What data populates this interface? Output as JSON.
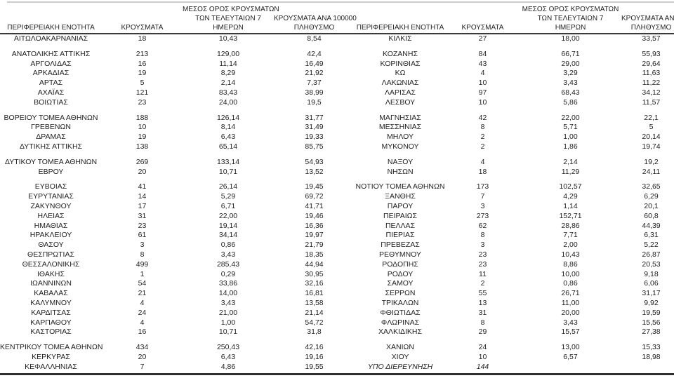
{
  "colors": {
    "background": "#ffffff",
    "text": "#1f1f1f",
    "top_rule": "#cbcbcb",
    "header_rule": "#3a3a3a",
    "bottom_rule": "#2e2e2e"
  },
  "header": {
    "region": "ΠΕΡΙΦΕΡΕΙΑΚΗ ΕΝΟΤΗΤΑ",
    "cases": "ΚΡΟΥΣΜΑΤΑ",
    "avg_line1": "ΜΕΣΟΣ ΟΡΟΣ ΚΡΟΥΣΜΑΤΩΝ",
    "avg_line2": "ΤΩΝ ΤΕΛΕΥΤΑΙΩΝ 7",
    "avg_line3": "ΗΜΕΡΩΝ",
    "per100k_line1": "ΚΡΟΥΣΜΑΤΑ ΑΝΑ 100000",
    "per100k_line2": "ΠΛΗΘΥΣΜΟ"
  },
  "rows": [
    {
      "left": [
        "ΑΙΤΩΛΟΑΚΑΡΝΑΝΙΑΣ",
        "18",
        "10,43",
        "8,54"
      ],
      "right": [
        "ΚΙΛΚΙΣ",
        "27",
        "18,00",
        "33,57"
      ]
    },
    {
      "spacer": true
    },
    {
      "left": [
        "ΑΝΑΤΟΛΙΚΗΣ ΑΤΤΙΚΗΣ",
        "213",
        "129,00",
        "42,4"
      ],
      "right": [
        "ΚΟΖΑΝΗΣ",
        "84",
        "66,71",
        "55,93"
      ]
    },
    {
      "left": [
        "ΑΡΓΟΛΙΔΑΣ",
        "16",
        "11,14",
        "16,49"
      ],
      "right": [
        "ΚΟΡΙΝΘΙΑΣ",
        "43",
        "29,00",
        "29,64"
      ]
    },
    {
      "left": [
        "ΑΡΚΑΔΙΑΣ",
        "19",
        "8,29",
        "21,92"
      ],
      "right": [
        "ΚΩ",
        "4",
        "3,29",
        "11,63"
      ]
    },
    {
      "left": [
        "ΑΡΤΑΣ",
        "5",
        "2,14",
        "7,37"
      ],
      "right": [
        "ΛΑΚΩΝΙΑΣ",
        "10",
        "3,43",
        "11,22"
      ]
    },
    {
      "left": [
        "ΑΧΑΪΑΣ",
        "121",
        "83,43",
        "38,99"
      ],
      "right": [
        "ΛΑΡΙΣΑΣ",
        "97",
        "68,43",
        "34,12"
      ]
    },
    {
      "left": [
        "ΒΟΙΩΤΙΑΣ",
        "23",
        "24,00",
        "19,5"
      ],
      "right": [
        "ΛΕΣΒΟΥ",
        "10",
        "5,86",
        "11,57"
      ]
    },
    {
      "spacer": true
    },
    {
      "left": [
        "ΒΟΡΕΙΟΥ ΤΟΜΕΑ ΑΘΗΝΩΝ",
        "188",
        "126,14",
        "31,77"
      ],
      "right": [
        "ΜΑΓΝΗΣΙΑΣ",
        "42",
        "22,00",
        "22,1"
      ]
    },
    {
      "left": [
        "ΓΡΕΒΕΝΩΝ",
        "10",
        "8,14",
        "31,49"
      ],
      "right": [
        "ΜΕΣΣΗΝΙΑΣ",
        "8",
        "5,71",
        "5"
      ]
    },
    {
      "left": [
        "ΔΡΑΜΑΣ",
        "19",
        "6,43",
        "19,33"
      ],
      "right": [
        "ΜΗΛΟΥ",
        "2",
        "1,00",
        "20,14"
      ]
    },
    {
      "left": [
        "ΔΥΤΙΚΗΣ ΑΤΤΙΚΗΣ",
        "138",
        "65,14",
        "85,75"
      ],
      "right": [
        "ΜΥΚΟΝΟΥ",
        "2",
        "1,86",
        "19,74"
      ]
    },
    {
      "spacer": true
    },
    {
      "left": [
        "ΔΥΤΙΚΟΥ ΤΟΜΕΑ ΑΘΗΝΩΝ",
        "269",
        "133,14",
        "54,93"
      ],
      "right": [
        "ΝΑΞΟΥ",
        "4",
        "2,14",
        "19,2"
      ]
    },
    {
      "left": [
        "ΕΒΡΟΥ",
        "20",
        "10,71",
        "13,52"
      ],
      "right": [
        "ΝΗΣΩΝ",
        "18",
        "11,29",
        "24,11"
      ]
    },
    {
      "spacer": true
    },
    {
      "left": [
        "ΕΥΒΟΙΑΣ",
        "41",
        "26,14",
        "19,45"
      ],
      "right": [
        "ΝΟΤΙΟΥ ΤΟΜΕΑ ΑΘΗΝΩΝ",
        "173",
        "102,57",
        "32,65"
      ]
    },
    {
      "left": [
        "ΕΥΡΥΤΑΝΙΑΣ",
        "14",
        "5,29",
        "69,72"
      ],
      "right": [
        "ΞΑΝΘΗΣ",
        "7",
        "4,29",
        "6,29"
      ]
    },
    {
      "left": [
        "ΖΑΚΥΝΘΟΥ",
        "17",
        "6,71",
        "41,71"
      ],
      "right": [
        "ΠΑΡΟΥ",
        "3",
        "1,14",
        "20,1"
      ]
    },
    {
      "left": [
        "ΗΛΕΙΑΣ",
        "31",
        "22,00",
        "19,46"
      ],
      "right": [
        "ΠΕΙΡΑΙΩΣ",
        "273",
        "152,71",
        "60,8"
      ]
    },
    {
      "left": [
        "ΗΜΑΘΙΑΣ",
        "23",
        "19,14",
        "16,36"
      ],
      "right": [
        "ΠΕΛΛΑΣ",
        "62",
        "28,86",
        "44,39"
      ]
    },
    {
      "left": [
        "ΗΡΑΚΛΕΙΟΥ",
        "61",
        "34,14",
        "19,97"
      ],
      "right": [
        "ΠΙΕΡΙΑΣ",
        "8",
        "7,71",
        "6,31"
      ]
    },
    {
      "left": [
        "ΘΑΣΟΥ",
        "3",
        "0,86",
        "21,79"
      ],
      "right": [
        "ΠΡΕΒΕΖΑΣ",
        "3",
        "2,00",
        "5,22"
      ]
    },
    {
      "left": [
        "ΘΕΣΠΡΩΤΙΑΣ",
        "8",
        "3,43",
        "18,35"
      ],
      "right": [
        "ΡΕΘΥΜΝΟΥ",
        "23",
        "10,43",
        "26,87"
      ]
    },
    {
      "left": [
        "ΘΕΣΣΑΛΟΝΙΚΗΣ",
        "499",
        "285,43",
        "44,94"
      ],
      "right": [
        "ΡΟΔΟΠΗΣ",
        "23",
        "8,86",
        "20,53"
      ]
    },
    {
      "left": [
        "ΙΘΑΚΗΣ",
        "1",
        "0,29",
        "30,95"
      ],
      "right": [
        "ΡΟΔΟΥ",
        "11",
        "10,00",
        "9,18"
      ]
    },
    {
      "left": [
        "ΙΩΑΝΝΙΝΩΝ",
        "54",
        "33,86",
        "32,16"
      ],
      "right": [
        "ΣΑΜΟΥ",
        "2",
        "0,86",
        "6,06"
      ]
    },
    {
      "left": [
        "ΚΑΒΑΛΑΣ",
        "21",
        "14,00",
        "16,81"
      ],
      "right": [
        "ΣΕΡΡΩΝ",
        "55",
        "26,71",
        "31,17"
      ]
    },
    {
      "left": [
        "ΚΑΛΥΜΝΟΥ",
        "4",
        "3,43",
        "13,58"
      ],
      "right": [
        "ΤΡΙΚΑΛΩΝ",
        "13",
        "11,00",
        "9,92"
      ]
    },
    {
      "left": [
        "ΚΑΡΔΙΤΣΑΣ",
        "24",
        "21,00",
        "21,14"
      ],
      "right": [
        "ΦΘΙΩΤΙΔΑΣ",
        "31",
        "20,00",
        "19,59"
      ]
    },
    {
      "left": [
        "ΚΑΡΠΑΘΟΥ",
        "4",
        "1,00",
        "54,72"
      ],
      "right": [
        "ΦΛΩΡΙΝΑΣ",
        "8",
        "3,43",
        "15,56"
      ]
    },
    {
      "left": [
        "ΚΑΣΤΟΡΙΑΣ",
        "16",
        "10,71",
        "31,8"
      ],
      "right": [
        "ΧΑΛΚΙΔΙΚΗΣ",
        "29",
        "15,57",
        "27,38"
      ]
    },
    {
      "spacer": true
    },
    {
      "left": [
        "ΚΕΝΤΡΙΚΟΥ ΤΟΜΕΑ ΑΘΗΝΩΝ",
        "434",
        "250,43",
        "42,16"
      ],
      "right": [
        "ΧΑΝΙΩΝ",
        "24",
        "13,00",
        "15,33"
      ]
    },
    {
      "left": [
        "ΚΕΡΚΥΡΑΣ",
        "20",
        "6,43",
        "19,16"
      ],
      "right": [
        "ΧΙΟΥ",
        "10",
        "6,57",
        "18,98"
      ]
    },
    {
      "left": [
        "ΚΕΦΑΛΛΗΝΙΑΣ",
        "7",
        "4,86",
        "19,55"
      ],
      "right": [
        "ΥΠΟ ΔΙΕΡΕΥΝΗΣΗ",
        "144",
        "",
        ""
      ],
      "right_italic": true
    }
  ]
}
